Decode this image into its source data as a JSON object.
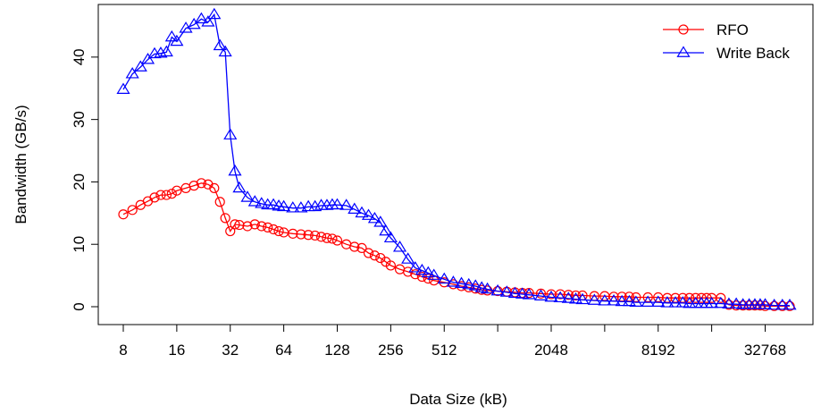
{
  "chart_data": {
    "type": "line",
    "title": "",
    "xlabel": "Data Size (kB)",
    "ylabel": "Bandwidth (GB/s)",
    "x_scale": "log2",
    "xlim": [
      8,
      50000
    ],
    "ylim": [
      0,
      47
    ],
    "xticks": [
      8,
      16,
      32,
      64,
      128,
      256,
      512,
      2048,
      8192,
      32768
    ],
    "yticks": [
      0,
      10,
      20,
      30,
      40
    ],
    "grid": false,
    "legend_position": "top-right",
    "series": [
      {
        "name": "RFO",
        "color": "#ff0000",
        "marker": "circle",
        "x": [
          8,
          9,
          10,
          11,
          12,
          13,
          14,
          15,
          16,
          18,
          20,
          22,
          24,
          26,
          28,
          30,
          32,
          34,
          36,
          40,
          44,
          48,
          52,
          56,
          60,
          64,
          72,
          80,
          88,
          96,
          104,
          112,
          120,
          128,
          144,
          160,
          176,
          192,
          208,
          224,
          240,
          256,
          288,
          320,
          352,
          384,
          416,
          448,
          512,
          576,
          640,
          704,
          768,
          832,
          896,
          1024,
          1152,
          1280,
          1408,
          1536,
          1792,
          2048,
          2304,
          2560,
          2816,
          3072,
          3584,
          4096,
          4608,
          5120,
          5632,
          6144,
          7168,
          8192,
          9216,
          10240,
          11264,
          12288,
          13312,
          14336,
          15360,
          16384,
          18432,
          20480,
          22528,
          24576,
          26624,
          28672,
          30720,
          32768,
          36864,
          40960,
          45056
        ],
        "y": [
          14.8,
          15.5,
          16.3,
          16.9,
          17.5,
          17.9,
          17.9,
          18.1,
          18.6,
          19.0,
          19.4,
          19.8,
          19.6,
          19.0,
          16.8,
          14.2,
          12.1,
          13.2,
          13.1,
          12.9,
          13.2,
          12.9,
          12.7,
          12.4,
          12.1,
          11.9,
          11.7,
          11.6,
          11.5,
          11.4,
          11.2,
          11.0,
          10.9,
          10.6,
          10.0,
          9.6,
          9.4,
          8.6,
          8.2,
          7.8,
          7.2,
          6.6,
          6.0,
          5.6,
          5.2,
          4.8,
          4.5,
          4.2,
          3.9,
          3.6,
          3.3,
          3.1,
          2.9,
          2.7,
          2.6,
          2.5,
          2.4,
          2.3,
          2.2,
          2.2,
          2.1,
          2.0,
          2.0,
          1.9,
          1.8,
          1.8,
          1.7,
          1.7,
          1.6,
          1.6,
          1.6,
          1.5,
          1.5,
          1.5,
          1.4,
          1.4,
          1.4,
          1.4,
          1.4,
          1.4,
          1.4,
          1.4,
          1.4,
          0.3,
          0.2,
          0.2,
          0.2,
          0.2,
          0.2,
          0.1,
          0.1,
          0.1,
          0.1
        ]
      },
      {
        "name": "Write Back",
        "color": "#0000ff",
        "marker": "triangle",
        "x": [
          8,
          9,
          10,
          11,
          12,
          13,
          14,
          15,
          16,
          18,
          20,
          22,
          24,
          26,
          28,
          30,
          32,
          34,
          36,
          40,
          44,
          48,
          52,
          56,
          60,
          64,
          72,
          80,
          88,
          96,
          104,
          112,
          120,
          128,
          144,
          160,
          176,
          192,
          208,
          224,
          240,
          256,
          288,
          320,
          352,
          384,
          416,
          448,
          512,
          576,
          640,
          704,
          768,
          832,
          896,
          1024,
          1152,
          1280,
          1408,
          1536,
          1792,
          2048,
          2304,
          2560,
          2816,
          3072,
          3584,
          4096,
          4608,
          5120,
          5632,
          6144,
          7168,
          8192,
          9216,
          10240,
          11264,
          12288,
          13312,
          14336,
          15360,
          16384,
          18432,
          20480,
          22528,
          24576,
          26624,
          28672,
          30720,
          32768,
          36864,
          40960,
          45056
        ],
        "y": [
          34.8,
          37.3,
          38.4,
          39.6,
          40.5,
          40.6,
          40.8,
          43.2,
          42.5,
          44.6,
          45.2,
          46.1,
          45.6,
          46.8,
          41.8,
          40.8,
          27.5,
          21.7,
          19.0,
          17.5,
          16.8,
          16.5,
          16.3,
          16.3,
          16.1,
          16.0,
          15.8,
          15.8,
          16.0,
          16.0,
          16.2,
          16.2,
          16.3,
          16.3,
          16.2,
          15.6,
          15.0,
          14.6,
          14.1,
          13.5,
          12.1,
          11.0,
          9.5,
          7.6,
          6.2,
          5.8,
          5.4,
          5.0,
          4.4,
          3.9,
          3.7,
          3.5,
          3.3,
          3.0,
          2.8,
          2.5,
          2.3,
          2.1,
          2.0,
          1.9,
          1.7,
          1.5,
          1.4,
          1.3,
          1.2,
          1.1,
          1.0,
          0.9,
          0.9,
          0.8,
          0.8,
          0.7,
          0.7,
          0.7,
          0.6,
          0.6,
          0.6,
          0.5,
          0.5,
          0.5,
          0.5,
          0.5,
          0.5,
          0.4,
          0.4,
          0.3,
          0.3,
          0.3,
          0.3,
          0.3,
          0.2,
          0.2,
          0.2
        ]
      }
    ]
  }
}
